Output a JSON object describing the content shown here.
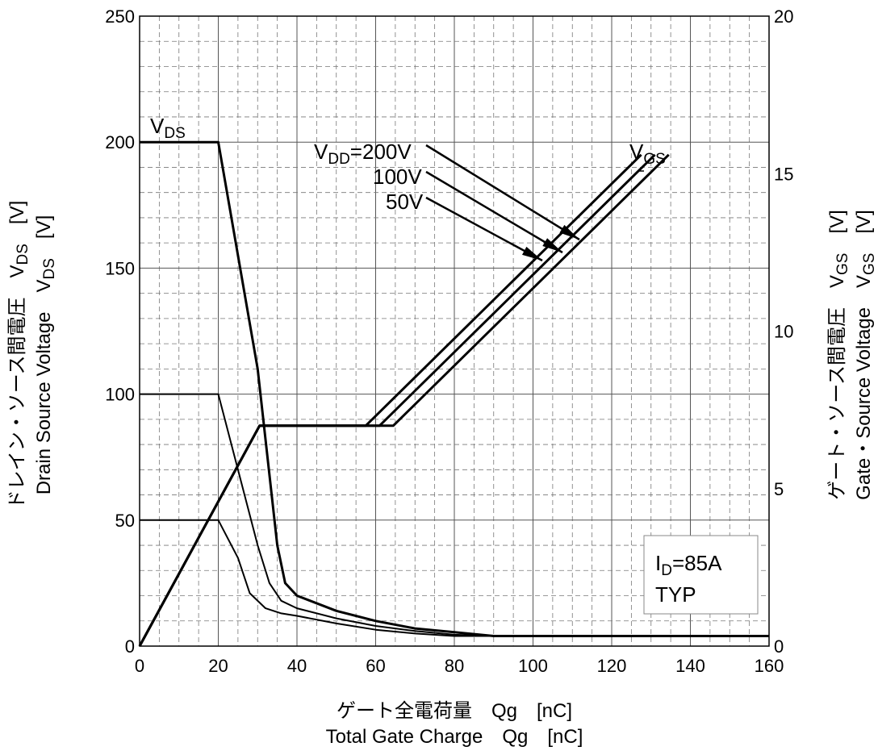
{
  "chart_data": {
    "type": "line",
    "x_axis": {
      "range": [
        0,
        160
      ],
      "ticks": [
        "0",
        "20",
        "40",
        "60",
        "80",
        "100",
        "120",
        "140",
        "160"
      ],
      "label_jp": "ゲート全電荷量　Qg　[nC]",
      "label_en": "Total Gate Charge　Qg　[nC]"
    },
    "y_left": {
      "range": [
        0,
        250
      ],
      "ticks": [
        "0",
        "50",
        "100",
        "150",
        "200",
        "250"
      ],
      "label_jp": "ドレイン・ソース間電圧　V",
      "label_jp_sub": "DS",
      "label_jp_unit": "[V]",
      "label_en": "Drain Source Voltage　V",
      "label_en_sub": "DS",
      "label_en_unit": "[V]"
    },
    "y_right": {
      "range": [
        0,
        20
      ],
      "ticks": [
        "0",
        "5",
        "10",
        "15",
        "20"
      ],
      "label_jp": "ゲート・ソース間電圧　V",
      "label_jp_sub": "GS",
      "label_jp_unit": "[V]",
      "label_en": "Gate・Source Voltage　V",
      "label_en_sub": "GS",
      "label_en_unit": "[V]"
    },
    "grid": true,
    "series": [
      {
        "axis": "left",
        "width": 3,
        "points": [
          [
            0,
            200
          ],
          [
            20,
            200
          ],
          [
            30,
            110
          ],
          [
            35,
            40
          ],
          [
            37,
            25
          ],
          [
            40,
            20
          ],
          [
            50,
            14
          ],
          [
            60,
            10
          ],
          [
            70,
            7
          ],
          [
            80,
            5.5
          ],
          [
            90,
            4
          ],
          [
            160,
            4
          ]
        ]
      },
      {
        "axis": "left",
        "width": 2,
        "points": [
          [
            0,
            100
          ],
          [
            20,
            100
          ],
          [
            30,
            40
          ],
          [
            33,
            25
          ],
          [
            36,
            18
          ],
          [
            40,
            15
          ],
          [
            50,
            11
          ],
          [
            60,
            8
          ],
          [
            70,
            6
          ],
          [
            80,
            4.5
          ],
          [
            90,
            4
          ],
          [
            160,
            4
          ]
        ]
      },
      {
        "axis": "left",
        "width": 2,
        "points": [
          [
            0,
            50
          ],
          [
            20,
            50
          ],
          [
            25,
            35
          ],
          [
            28,
            21
          ],
          [
            32,
            15
          ],
          [
            36,
            13
          ],
          [
            40,
            12
          ],
          [
            50,
            9
          ],
          [
            60,
            6.5
          ],
          [
            70,
            5
          ],
          [
            80,
            4
          ],
          [
            90,
            4
          ],
          [
            160,
            4
          ]
        ]
      },
      {
        "axis": "right",
        "width": 3,
        "points": [
          [
            0,
            0
          ],
          [
            30.5,
            7
          ],
          [
            57.5,
            7
          ],
          [
            127.5,
            15.6
          ]
        ]
      },
      {
        "axis": "right",
        "width": 3,
        "points": [
          [
            0,
            0
          ],
          [
            30.5,
            7
          ],
          [
            61,
            7
          ],
          [
            131,
            15.6
          ]
        ]
      },
      {
        "axis": "right",
        "width": 3,
        "points": [
          [
            0,
            0
          ],
          [
            30.5,
            7
          ],
          [
            64.5,
            7
          ],
          [
            134.5,
            15.6
          ]
        ]
      }
    ],
    "annotations": {
      "vds": {
        "text": "V",
        "sub": "DS"
      },
      "vgs": {
        "text": "V",
        "sub": "GS"
      },
      "vdd200": {
        "text_pre": "V",
        "sub": "DD",
        "text_post": "=200V"
      },
      "vdd100": "100V",
      "vdd50": "50V",
      "cond_id": {
        "text": "I",
        "sub": "D",
        "post": "=85A"
      },
      "cond_typ": "TYP"
    }
  }
}
